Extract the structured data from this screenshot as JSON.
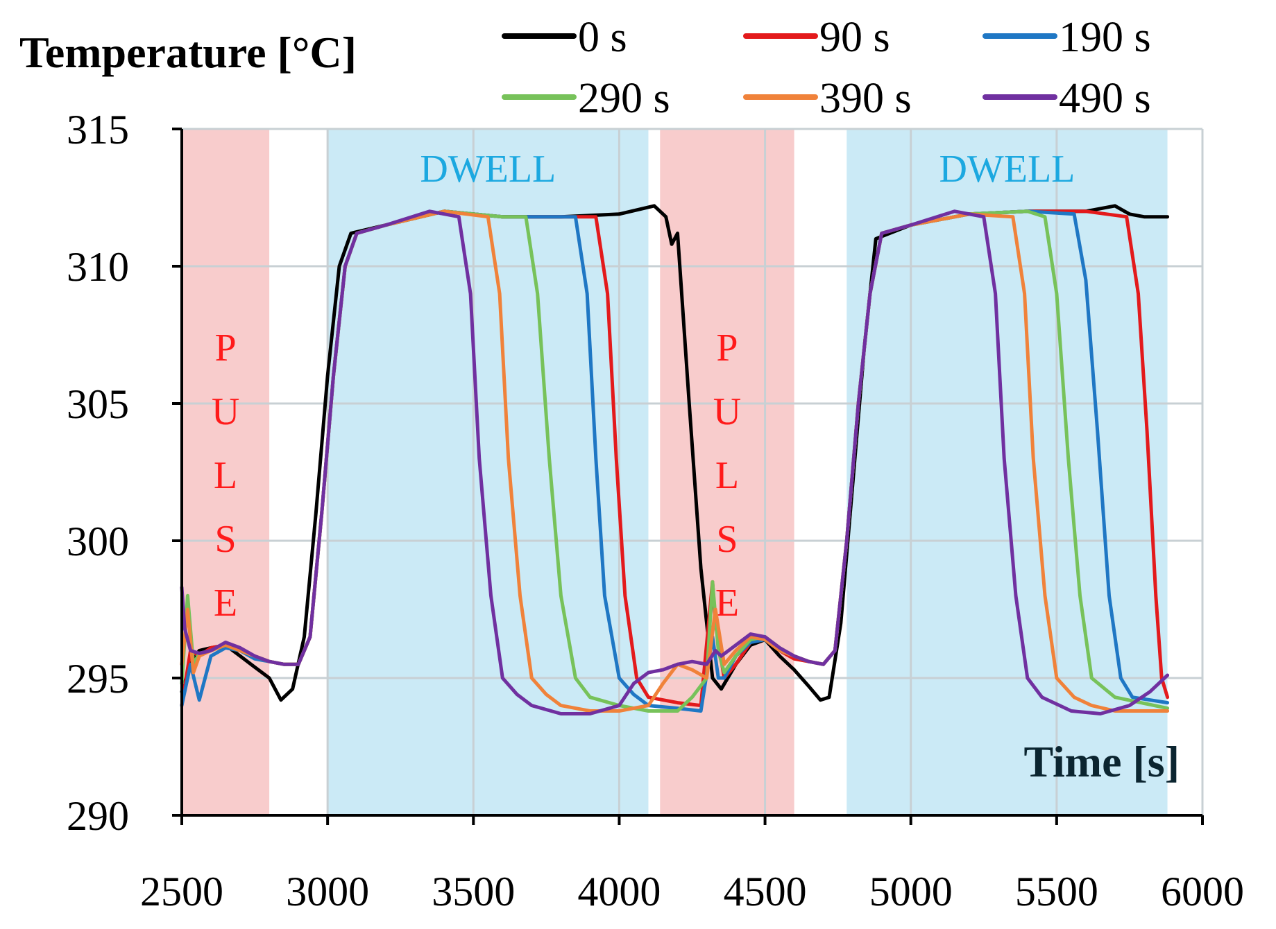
{
  "chart_data": {
    "type": "line",
    "ylabel": "Temperature [°C]",
    "xlabel": "Time [s]",
    "xlim": [
      2500,
      6000
    ],
    "ylim": [
      290,
      315
    ],
    "x_ticks": [
      2500,
      3000,
      3500,
      4000,
      4500,
      5000,
      5500,
      6000
    ],
    "y_ticks": [
      290,
      295,
      300,
      305,
      310,
      315
    ],
    "grid": true,
    "legend_position": "top",
    "regions": [
      {
        "label": "PULSE",
        "x_start": 2500,
        "x_end": 2800,
        "color": "#f8cccc",
        "text_color": "#ff1a1a",
        "orientation": "vertical"
      },
      {
        "label": "DWELL",
        "x_start": 3000,
        "x_end": 4100,
        "color": "#cbeaf6",
        "text_color": "#1ba8e0",
        "orientation": "horizontal"
      },
      {
        "label": "PULSE",
        "x_start": 4140,
        "x_end": 4600,
        "color": "#f8cccc",
        "text_color": "#ff1a1a",
        "orientation": "vertical"
      },
      {
        "label": "DWELL",
        "x_start": 4780,
        "x_end": 5880,
        "color": "#cbeaf6",
        "text_color": "#1ba8e0",
        "orientation": "horizontal"
      }
    ],
    "series": [
      {
        "name": "0 s",
        "color": "#000000",
        "x": [
          2500,
          2530,
          2560,
          2600,
          2650,
          2700,
          2750,
          2800,
          2840,
          2880,
          2920,
          2960,
          3000,
          3040,
          3080,
          3200,
          3400,
          3600,
          3800,
          4000,
          4120,
          4160,
          4180,
          4200,
          4240,
          4280,
          4320,
          4350,
          4400,
          4450,
          4500,
          4550,
          4600,
          4650,
          4690,
          4720,
          4760,
          4800,
          4840,
          4880,
          5000,
          5200,
          5400,
          5600,
          5700,
          5750,
          5800,
          5880
        ],
        "y": [
          294.5,
          295.5,
          296.0,
          296.1,
          296.2,
          295.8,
          295.4,
          295.0,
          294.2,
          294.6,
          296.5,
          301.0,
          306.0,
          310.0,
          311.2,
          311.5,
          312.0,
          311.8,
          311.8,
          311.9,
          312.2,
          311.8,
          310.8,
          311.2,
          305.0,
          299.0,
          295.0,
          294.6,
          295.5,
          296.2,
          296.4,
          295.8,
          295.3,
          294.7,
          294.2,
          294.3,
          297.0,
          302.0,
          307.0,
          311.0,
          311.5,
          311.9,
          312.0,
          312.0,
          312.2,
          311.9,
          311.8,
          311.8
        ]
      },
      {
        "name": "90 s",
        "color": "#e31a1c",
        "x": [
          2500,
          2530,
          2560,
          2600,
          2650,
          2700,
          2750,
          2800,
          2850,
          2900,
          2940,
          2980,
          3020,
          3060,
          3100,
          3200,
          3400,
          3600,
          3800,
          3920,
          3960,
          3990,
          4020,
          4060,
          4100,
          4200,
          4280,
          4320,
          4330,
          4360,
          4400,
          4450,
          4500,
          4550,
          4600,
          4650,
          4700,
          4740,
          4780,
          4820,
          4860,
          4900,
          5000,
          5200,
          5400,
          5600,
          5740,
          5780,
          5810,
          5840,
          5860,
          5880
        ],
        "y": [
          294.0,
          296.0,
          295.8,
          296.1,
          296.2,
          296.0,
          295.8,
          295.6,
          295.5,
          295.5,
          296.5,
          301.0,
          306.0,
          310.0,
          311.2,
          311.5,
          312.0,
          311.8,
          311.8,
          311.8,
          309.0,
          303.0,
          298.0,
          295.0,
          294.3,
          294.1,
          294.0,
          298.5,
          297.0,
          295.0,
          295.5,
          296.3,
          296.5,
          296.0,
          295.7,
          295.6,
          295.5,
          296.0,
          300.0,
          305.0,
          309.0,
          311.2,
          311.5,
          311.9,
          312.0,
          312.0,
          311.8,
          309.0,
          304.0,
          298.0,
          295.0,
          294.3
        ]
      },
      {
        "name": "190 s",
        "color": "#1f77c4",
        "x": [
          2500,
          2530,
          2560,
          2600,
          2650,
          2700,
          2750,
          2800,
          2850,
          2900,
          2940,
          2980,
          3020,
          3060,
          3100,
          3200,
          3400,
          3600,
          3750,
          3850,
          3890,
          3920,
          3950,
          4000,
          4050,
          4100,
          4200,
          4280,
          4320,
          4340,
          4360,
          4400,
          4450,
          4500,
          4550,
          4600,
          4650,
          4700,
          4740,
          4780,
          4820,
          4860,
          4900,
          5000,
          5200,
          5400,
          5560,
          5600,
          5640,
          5680,
          5720,
          5760,
          5880
        ],
        "y": [
          294.0,
          295.5,
          294.2,
          295.8,
          296.1,
          296.0,
          295.7,
          295.6,
          295.5,
          295.5,
          296.5,
          301.0,
          306.0,
          310.0,
          311.2,
          311.5,
          312.0,
          311.8,
          311.8,
          311.8,
          309.0,
          303.0,
          298.0,
          295.0,
          294.4,
          294.0,
          293.9,
          293.8,
          296.5,
          295.0,
          295.0,
          295.8,
          296.3,
          296.4,
          296.0,
          295.8,
          295.6,
          295.5,
          296.0,
          300.0,
          305.0,
          309.0,
          311.2,
          311.5,
          311.9,
          312.0,
          311.9,
          309.5,
          304.0,
          298.0,
          295.0,
          294.3,
          294.1
        ]
      },
      {
        "name": "290 s",
        "color": "#77c25a",
        "x": [
          2500,
          2520,
          2540,
          2560,
          2600,
          2650,
          2700,
          2750,
          2800,
          2850,
          2900,
          2940,
          2980,
          3020,
          3060,
          3100,
          3200,
          3400,
          3600,
          3680,
          3720,
          3760,
          3800,
          3850,
          3900,
          4000,
          4100,
          4200,
          4250,
          4300,
          4320,
          4340,
          4360,
          4400,
          4450,
          4500,
          4550,
          4600,
          4650,
          4700,
          4740,
          4780,
          4820,
          4860,
          4900,
          5000,
          5200,
          5400,
          5460,
          5500,
          5540,
          5580,
          5620,
          5700,
          5880
        ],
        "y": [
          294.8,
          298.0,
          295.5,
          295.9,
          296.0,
          296.2,
          296.0,
          295.8,
          295.6,
          295.5,
          295.5,
          296.5,
          301.0,
          306.0,
          310.0,
          311.2,
          311.5,
          312.0,
          311.8,
          311.8,
          309.0,
          303.0,
          298.0,
          295.0,
          294.3,
          294.0,
          293.8,
          293.8,
          294.3,
          295.0,
          298.5,
          296.0,
          295.2,
          295.8,
          296.4,
          296.5,
          296.1,
          295.8,
          295.6,
          295.5,
          296.0,
          300.0,
          305.0,
          309.0,
          311.2,
          311.5,
          311.9,
          312.0,
          311.8,
          309.0,
          303.0,
          298.0,
          295.0,
          294.3,
          293.9
        ]
      },
      {
        "name": "390 s",
        "color": "#f0823a",
        "x": [
          2500,
          2520,
          2540,
          2560,
          2600,
          2650,
          2700,
          2750,
          2800,
          2850,
          2900,
          2940,
          2980,
          3020,
          3060,
          3100,
          3200,
          3400,
          3550,
          3590,
          3620,
          3660,
          3700,
          3750,
          3800,
          3900,
          4000,
          4100,
          4150,
          4200,
          4250,
          4300,
          4330,
          4360,
          4400,
          4450,
          4500,
          4550,
          4600,
          4650,
          4700,
          4740,
          4780,
          4820,
          4860,
          4900,
          5000,
          5200,
          5350,
          5390,
          5420,
          5460,
          5500,
          5560,
          5620,
          5700,
          5880
        ],
        "y": [
          295.5,
          297.5,
          295.2,
          295.8,
          296.0,
          296.2,
          296.0,
          295.8,
          295.6,
          295.5,
          295.5,
          296.5,
          301.0,
          306.0,
          310.0,
          311.2,
          311.5,
          312.0,
          311.8,
          309.0,
          303.0,
          298.0,
          295.0,
          294.4,
          294.0,
          293.8,
          293.8,
          294.0,
          294.8,
          295.5,
          295.3,
          295.0,
          297.5,
          295.5,
          296.0,
          296.5,
          296.4,
          296.0,
          295.8,
          295.6,
          295.5,
          296.0,
          300.0,
          305.0,
          309.0,
          311.2,
          311.5,
          311.9,
          311.8,
          309.0,
          303.0,
          298.0,
          295.0,
          294.3,
          294.0,
          293.8,
          293.8
        ]
      },
      {
        "name": "490 s",
        "color": "#7030a0",
        "x": [
          2500,
          2510,
          2530,
          2560,
          2600,
          2650,
          2700,
          2750,
          2800,
          2850,
          2900,
          2940,
          2980,
          3020,
          3060,
          3100,
          3200,
          3350,
          3450,
          3490,
          3520,
          3560,
          3600,
          3650,
          3700,
          3800,
          3900,
          4000,
          4050,
          4100,
          4150,
          4200,
          4250,
          4300,
          4330,
          4350,
          4400,
          4450,
          4500,
          4550,
          4600,
          4650,
          4700,
          4740,
          4780,
          4820,
          4860,
          4900,
          5000,
          5150,
          5250,
          5290,
          5320,
          5360,
          5400,
          5450,
          5550,
          5650,
          5750,
          5820,
          5880
        ],
        "y": [
          298.3,
          296.8,
          296.0,
          295.9,
          296.0,
          296.3,
          296.1,
          295.8,
          295.6,
          295.5,
          295.5,
          296.5,
          301.0,
          306.0,
          310.0,
          311.2,
          311.5,
          312.0,
          311.8,
          309.0,
          303.0,
          298.0,
          295.0,
          294.4,
          294.0,
          293.7,
          293.7,
          294.0,
          294.8,
          295.2,
          295.3,
          295.5,
          295.6,
          295.5,
          296.0,
          295.8,
          296.2,
          296.6,
          296.5,
          296.1,
          295.8,
          295.6,
          295.5,
          296.0,
          300.0,
          305.0,
          309.0,
          311.2,
          311.5,
          312.0,
          311.8,
          309.0,
          303.0,
          298.0,
          295.0,
          294.3,
          293.8,
          293.7,
          294.0,
          294.5,
          295.1
        ]
      }
    ]
  }
}
